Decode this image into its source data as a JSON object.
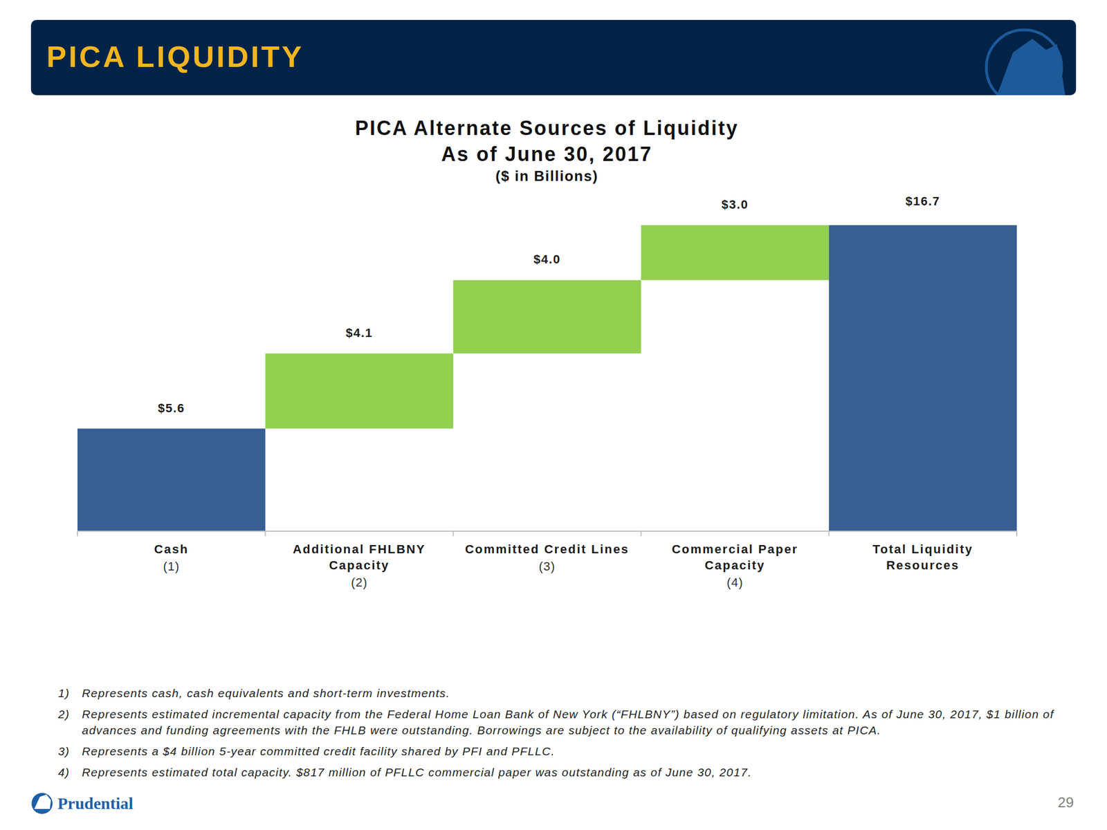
{
  "header": {
    "title": "PICA LIQUIDITY"
  },
  "chart_data": {
    "type": "waterfall",
    "title": "PICA Alternate Sources of Liquidity",
    "subtitle": "As of June 30, 2017",
    "annotations": [
      "($ in Billions)"
    ],
    "categories": [
      "Cash",
      "Additional FHLBNY Capacity",
      "Committed Credit Lines",
      "Commercial Paper Capacity",
      "Total Liquidity Resources"
    ],
    "footnote_refs": [
      "(1)",
      "(2)",
      "(3)",
      "(4)",
      null
    ],
    "values": [
      5.6,
      4.1,
      4.0,
      3.0,
      16.7
    ],
    "value_labels": [
      "$5.6",
      "$4.1",
      "$4.0",
      "$3.0",
      "$16.7"
    ],
    "colors": [
      "#375f91",
      "#92d050",
      "#92d050",
      "#92d050",
      "#375f91"
    ],
    "ylim": [
      0,
      17
    ],
    "data_labels": true,
    "tick_labels": "x",
    "grid": false
  },
  "footnotes": [
    {
      "marker": "1)",
      "text": "Represents cash, cash equivalents and short-term investments."
    },
    {
      "marker": "2)",
      "text": "Represents estimated incremental capacity from the Federal Home Loan Bank of New York (“FHLBNY”) based on regulatory limitation.  As of June 30, 2017, $1 billion of advances and funding agreements with the FHLB were outstanding. Borrowings are subject to the availability of qualifying assets at PICA."
    },
    {
      "marker": "3)",
      "text": "Represents a $4 billion 5-year committed credit facility shared by PFI and PFLLC."
    },
    {
      "marker": "4)",
      "text": "Represents estimated total capacity. $817 million of PFLLC commercial paper was outstanding as of June 30, 2017."
    }
  ],
  "footer": {
    "brand": "Prudential",
    "page": 29
  }
}
